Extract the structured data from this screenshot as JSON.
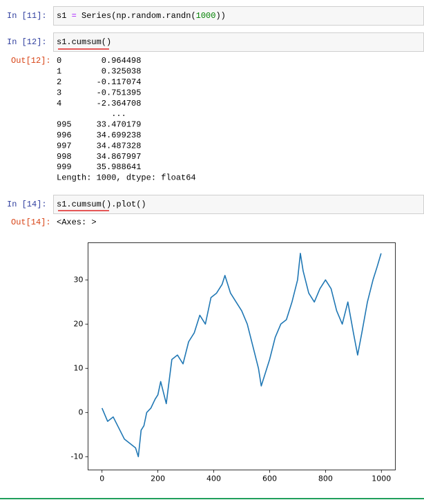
{
  "cells": [
    {
      "prompt": "In [11]:",
      "code": [
        {
          "text": "s1 ",
          "color": "#000000"
        },
        {
          "text": "=",
          "color": "#AA22FF"
        },
        {
          "text": " Series(np.random.randn(",
          "color": "#000000"
        },
        {
          "text": "1000",
          "color": "#008000"
        },
        {
          "text": "))",
          "color": "#000000"
        }
      ]
    },
    {
      "prompt": "In [12]:",
      "code": [
        {
          "text": "s1.cumsum()",
          "color": "#000000"
        }
      ],
      "out_prompt": "Out[12]:",
      "output": [
        "0        0.964498",
        "1        0.325038",
        "2       -0.117074",
        "3       -0.751395",
        "4       -2.364708",
        "           ...",
        "995     33.470179",
        "996     34.699238",
        "997     34.487328",
        "998     34.867997",
        "999     35.988641",
        "Length: 1000, dtype: float64"
      ]
    },
    {
      "prompt": "In [14]:",
      "code": [
        {
          "text": "s1.cumsum().plot()",
          "color": "#000000"
        }
      ],
      "out_prompt": "Out[14]:",
      "output": [
        "<Axes: >"
      ]
    }
  ],
  "chart_data": {
    "type": "line",
    "color": "#1f77b4",
    "x": [
      0,
      20,
      40,
      60,
      80,
      100,
      120,
      130,
      140,
      150,
      160,
      175,
      190,
      200,
      210,
      230,
      250,
      270,
      290,
      310,
      330,
      350,
      370,
      390,
      410,
      430,
      440,
      460,
      480,
      500,
      520,
      540,
      560,
      570,
      580,
      600,
      620,
      640,
      660,
      680,
      700,
      710,
      720,
      740,
      760,
      780,
      800,
      820,
      840,
      860,
      880,
      900,
      915,
      930,
      950,
      970,
      985,
      999
    ],
    "values": [
      1,
      -2,
      -1,
      -3.5,
      -6,
      -7,
      -8,
      -10,
      -4,
      -3,
      0,
      1,
      3,
      4,
      7,
      2,
      12,
      13,
      11,
      16,
      18,
      22,
      20,
      26,
      27,
      29,
      31,
      27,
      25,
      23,
      20,
      15,
      10,
      6,
      8,
      12,
      17,
      20,
      21,
      25,
      30,
      36,
      32,
      27,
      25,
      28,
      30,
      28,
      23,
      20,
      25,
      18,
      13,
      18,
      25,
      30,
      33,
      36
    ],
    "xlim": [
      -50,
      1050
    ],
    "xticks": [
      0,
      200,
      400,
      600,
      800,
      1000
    ],
    "ylim": [
      -13,
      38.4
    ],
    "yticks": [
      -10,
      0,
      10,
      20,
      30
    ]
  }
}
